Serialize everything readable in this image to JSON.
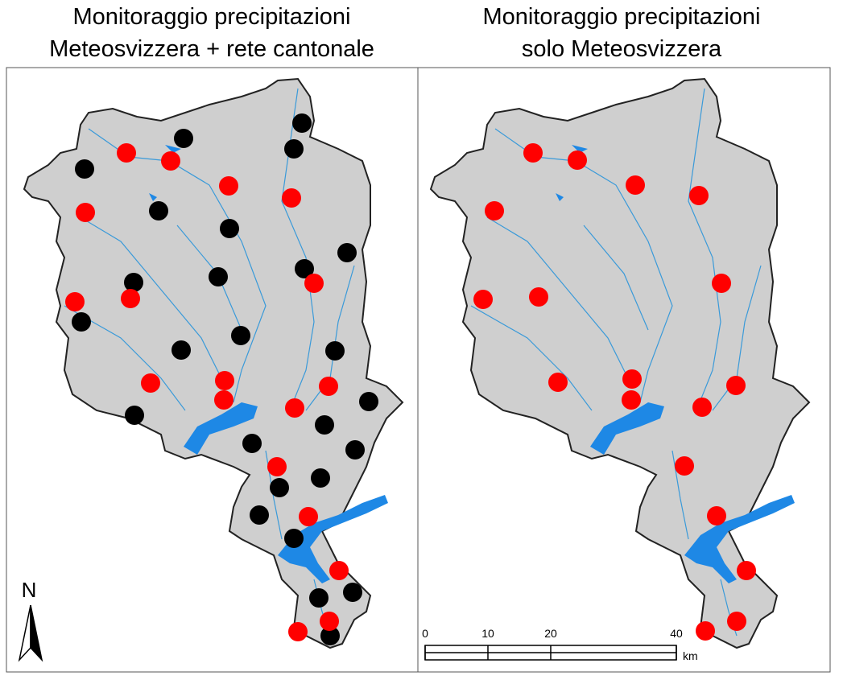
{
  "panels": [
    {
      "title": [
        "Monitoraggio precipitazioni",
        "Meteosvizzera + rete cantonale"
      ]
    },
    {
      "title": [
        "Monitoraggio precipitazioni",
        "solo Meteosvizzera"
      ]
    }
  ],
  "north_arrow": {
    "label": "N"
  },
  "scale_bar": {
    "ticks": [
      0,
      10,
      20,
      40
    ],
    "unit": "km"
  }
}
